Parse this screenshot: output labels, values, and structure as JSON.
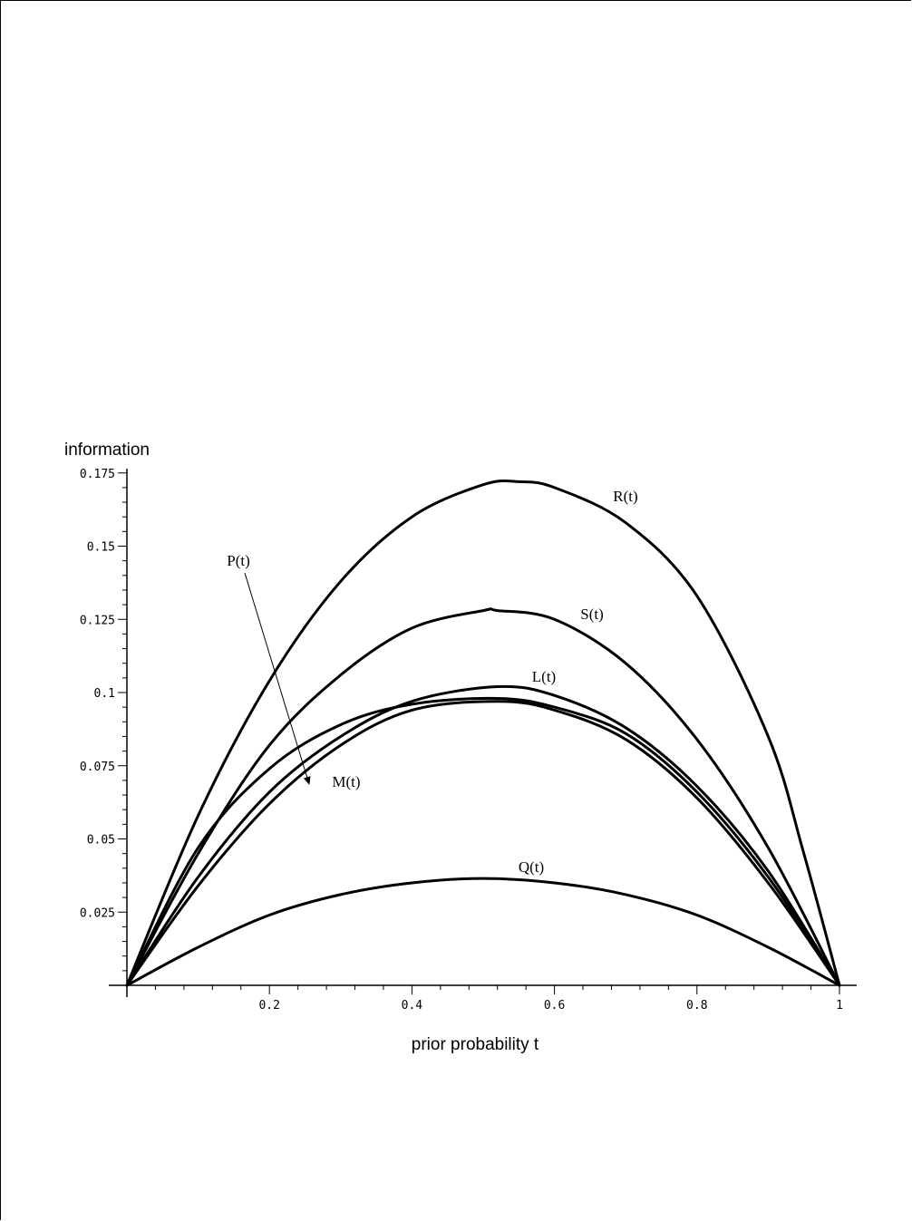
{
  "chart_data": {
    "type": "line",
    "title": "",
    "xlabel": "prior probability t",
    "ylabel": "information",
    "xlim": [
      0,
      1.02
    ],
    "ylim": [
      0,
      0.18
    ],
    "xticks": [
      0.2,
      0.4,
      0.6,
      0.8,
      1
    ],
    "xtick_labels": [
      "0.2",
      "0.4",
      "0.6",
      "0.8",
      "1"
    ],
    "yticks": [
      0.025,
      0.05,
      0.075,
      0.1,
      0.125,
      0.15,
      0.175
    ],
    "ytick_labels": [
      "0.025",
      "0.05",
      "0.075",
      "0.1",
      "0.125",
      "0.15",
      "0.175"
    ],
    "grid": false,
    "legend": "none",
    "series": [
      {
        "name": "R(t)",
        "x": [
          0,
          0.1,
          0.2,
          0.3,
          0.4,
          0.5,
          0.55,
          0.6,
          0.7,
          0.8,
          0.9,
          0.95,
          1
        ],
        "y": [
          0,
          0.058,
          0.104,
          0.138,
          0.16,
          0.171,
          0.172,
          0.17,
          0.158,
          0.133,
          0.085,
          0.045,
          0
        ]
      },
      {
        "name": "S(t)",
        "x": [
          0,
          0.1,
          0.2,
          0.3,
          0.4,
          0.5,
          0.52,
          0.6,
          0.7,
          0.8,
          0.9,
          1
        ],
        "y": [
          0,
          0.045,
          0.082,
          0.106,
          0.122,
          0.128,
          0.128,
          0.125,
          0.11,
          0.084,
          0.047,
          0
        ]
      },
      {
        "name": "L(t)",
        "x": [
          0,
          0.1,
          0.2,
          0.3,
          0.4,
          0.52,
          0.6,
          0.7,
          0.8,
          0.9,
          1
        ],
        "y": [
          0,
          0.037,
          0.066,
          0.085,
          0.097,
          0.102,
          0.099,
          0.088,
          0.068,
          0.039,
          0
        ]
      },
      {
        "name": "P(t)",
        "x": [
          0,
          0.1,
          0.2,
          0.3,
          0.4,
          0.52,
          0.6,
          0.7,
          0.8,
          0.9,
          1
        ],
        "y": [
          0,
          0.047,
          0.074,
          0.089,
          0.096,
          0.098,
          0.095,
          0.086,
          0.066,
          0.037,
          0
        ]
      },
      {
        "name": "M(t)",
        "x": [
          0,
          0.1,
          0.2,
          0.3,
          0.4,
          0.52,
          0.6,
          0.7,
          0.8,
          0.9,
          1
        ],
        "y": [
          0,
          0.034,
          0.062,
          0.082,
          0.094,
          0.097,
          0.094,
          0.084,
          0.064,
          0.035,
          0
        ]
      },
      {
        "name": "Q(t)",
        "x": [
          0,
          0.1,
          0.2,
          0.3,
          0.4,
          0.5,
          0.6,
          0.7,
          0.8,
          0.9,
          1
        ],
        "y": [
          0,
          0.013,
          0.024,
          0.031,
          0.035,
          0.0365,
          0.035,
          0.031,
          0.024,
          0.013,
          0
        ]
      }
    ],
    "annotations": [
      {
        "text": "R(t)",
        "series": "R(t)"
      },
      {
        "text": "S(t)",
        "series": "S(t)"
      },
      {
        "text": "L(t)",
        "series": "L(t)"
      },
      {
        "text": "P(t)",
        "series": "P(t)",
        "arrow": true
      },
      {
        "text": "M(t)",
        "series": "M(t)"
      },
      {
        "text": "Q(t)",
        "series": "Q(t)"
      }
    ]
  }
}
